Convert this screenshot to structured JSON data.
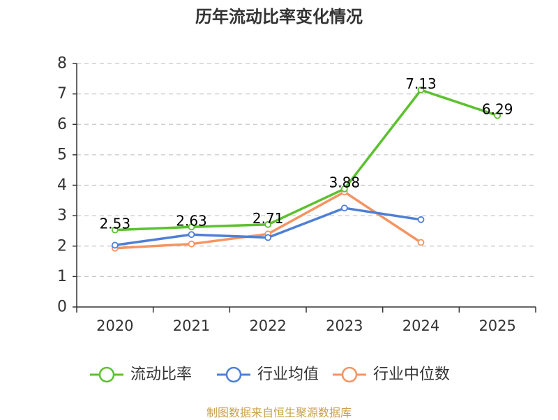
{
  "chart_data": {
    "type": "line",
    "title": "历年流动比率变化情况",
    "categories": [
      "2020",
      "2021",
      "2022",
      "2023",
      "2024",
      "2025"
    ],
    "ylim": [
      0,
      8
    ],
    "yticks": [
      0,
      1,
      2,
      3,
      4,
      5,
      6,
      7,
      8
    ],
    "grid": true,
    "legend_position": "bottom",
    "series": [
      {
        "name": "流动比率",
        "color": "#5cc12f",
        "values": [
          2.53,
          2.63,
          2.71,
          3.88,
          7.13,
          6.29
        ],
        "labels": [
          "2.53",
          "2.63",
          "2.71",
          "3.88",
          "7.13",
          "6.29"
        ],
        "show_labels": true
      },
      {
        "name": "行业均值",
        "color": "#4e7fd6",
        "values": [
          2.03,
          2.38,
          2.28,
          3.25,
          2.87,
          null
        ],
        "show_labels": false
      },
      {
        "name": "行业中位数",
        "color": "#f59462",
        "values": [
          1.93,
          2.07,
          2.4,
          3.78,
          2.12,
          null
        ],
        "show_labels": false
      }
    ],
    "source": "制图数据来自恒生聚源数据库"
  }
}
